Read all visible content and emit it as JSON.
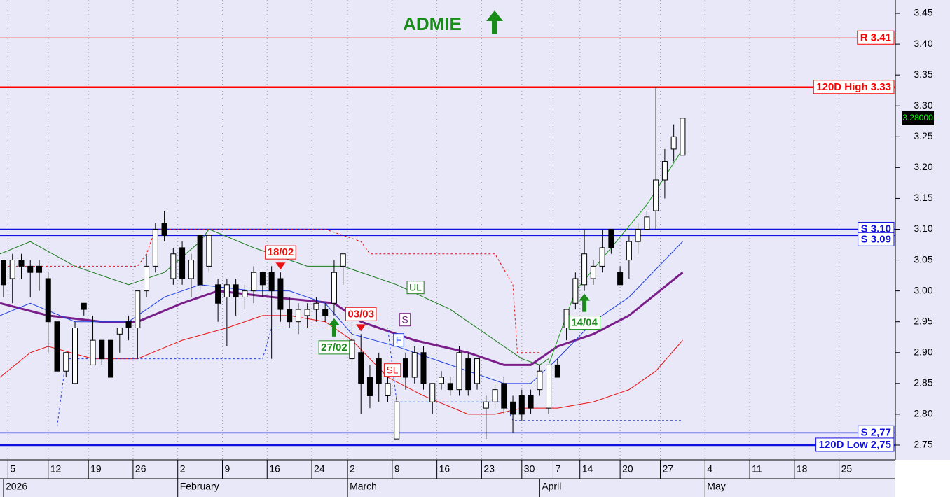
{
  "chart_data": {
    "type": "candlestick",
    "title": "ADMIE",
    "xlim": [
      -0.39,
      99.8
    ],
    "ylim": [
      2.7284,
      3.4716
    ],
    "xticks": [
      {
        "value": 0.5,
        "label": "5"
      },
      {
        "value": 5,
        "label": "12"
      },
      {
        "value": 9.5,
        "label": "19"
      },
      {
        "value": 14.5,
        "label": "26"
      },
      {
        "value": 19.5,
        "label": "2"
      },
      {
        "value": 24.5,
        "label": "9"
      },
      {
        "value": 29.5,
        "label": "16"
      },
      {
        "value": 34.5,
        "label": "24"
      },
      {
        "value": 38.5,
        "label": "2"
      },
      {
        "value": 43.5,
        "label": "9"
      },
      {
        "value": 48.5,
        "label": "16"
      },
      {
        "value": 53.5,
        "label": "23"
      },
      {
        "value": 58,
        "label": "30"
      },
      {
        "value": 61.5,
        "label": "7"
      },
      {
        "value": 64.5,
        "label": "14"
      },
      {
        "value": 69,
        "label": "20"
      },
      {
        "value": 73.5,
        "label": "27"
      },
      {
        "value": 78.5,
        "label": "4"
      },
      {
        "value": 83.5,
        "label": "11"
      },
      {
        "value": 88.5,
        "label": "18"
      },
      {
        "value": 93.5,
        "label": "25"
      }
    ],
    "month_ticks": [
      {
        "value": 0,
        "label": "2026"
      },
      {
        "value": 19.5,
        "label": "February"
      },
      {
        "value": 38.5,
        "label": "March"
      },
      {
        "value": 60,
        "label": "April"
      },
      {
        "value": 78.5,
        "label": "May"
      }
    ],
    "yticks": [
      2.75,
      {
        "value": 2.8,
        "label": "2.80"
      },
      2.85,
      {
        "value": 2.9,
        "label": "2.90"
      },
      2.95,
      {
        "value": 3,
        "label": "3.00"
      },
      3.05,
      {
        "value": 3.1,
        "label": "3.10"
      },
      3.15,
      {
        "value": 3.2,
        "label": "3.20"
      },
      3.25,
      {
        "value": 3.3,
        "label": "3.30"
      },
      3.35,
      {
        "value": 3.4,
        "label": "3.40"
      },
      3.45
    ],
    "open": [
      3.05,
      3.02,
      3.05,
      3.04,
      3.04,
      3.02,
      2.95,
      2.87,
      2.85,
      2.98,
      2.88,
      2.92,
      2.92,
      2.93,
      2.95,
      2.94,
      3.0,
      3.04,
      3.11,
      3.02,
      3.07,
      3.02,
      3.09,
      3.04,
      3.01,
      2.99,
      3.01,
      2.99,
      3.0,
      3.03,
      3.03,
      3.02,
      2.97,
      2.95,
      2.96,
      2.97,
      2.97,
      2.98,
      3.04,
      2.89,
      2.9,
      2.86,
      2.89,
      2.83,
      2.76,
      2.89,
      2.86,
      2.9,
      2.82,
      2.85,
      2.85,
      2.84,
      2.89,
      2.85,
      2.81,
      2.82,
      2.85,
      2.82,
      2.83,
      2.83,
      2.84,
      2.81,
      2.88,
      2.94,
      2.98,
      3.01,
      3.02,
      3.04,
      3.1,
      3.03,
      3.05,
      3.08,
      3.1,
      3.13,
      3.18,
      3.23,
      3.22
    ],
    "high": [
      3.05,
      3.06,
      3.06,
      3.05,
      3.05,
      3.03,
      2.96,
      2.9,
      2.95,
      2.98,
      2.96,
      2.92,
      2.92,
      2.94,
      2.96,
      3.0,
      3.06,
      3.11,
      3.13,
      3.07,
      3.08,
      3.06,
      3.09,
      3.09,
      3.02,
      3.02,
      3.02,
      3.01,
      3.04,
      3.03,
      3.04,
      3.03,
      2.99,
      2.98,
      2.98,
      2.99,
      2.98,
      3.05,
      3.06,
      2.95,
      2.93,
      2.88,
      2.9,
      2.87,
      2.83,
      2.9,
      2.91,
      2.91,
      2.85,
      2.87,
      2.86,
      2.91,
      2.9,
      2.89,
      2.83,
      2.85,
      2.86,
      2.83,
      2.84,
      2.84,
      2.88,
      2.88,
      2.89,
      2.97,
      3.03,
      3.1,
      3.05,
      3.1,
      3.1,
      3.04,
      3.09,
      3.11,
      3.13,
      3.33,
      3.23,
      3.27,
      3.28
    ],
    "low": [
      2.99,
      2.98,
      3.02,
      2.99,
      3.0,
      2.9,
      2.81,
      2.86,
      2.85,
      2.96,
      2.88,
      2.88,
      2.86,
      2.9,
      2.92,
      2.89,
      2.99,
      3.03,
      3.08,
      3.01,
      3.01,
      2.99,
      3.0,
      3.03,
      2.95,
      2.91,
      2.96,
      2.97,
      2.98,
      2.99,
      2.89,
      2.95,
      2.94,
      2.93,
      2.94,
      2.95,
      2.95,
      2.96,
      3.01,
      2.88,
      2.8,
      2.81,
      2.82,
      2.82,
      2.76,
      2.84,
      2.85,
      2.84,
      2.8,
      2.84,
      2.83,
      2.83,
      2.83,
      2.84,
      2.76,
      2.81,
      2.8,
      2.77,
      2.79,
      2.8,
      2.83,
      2.8,
      2.86,
      2.92,
      2.97,
      3.0,
      3.01,
      3.03,
      3.06,
      3.01,
      3.02,
      3.06,
      3.1,
      3.1,
      3.15,
      3.21,
      3.22
    ],
    "close": [
      3.01,
      3.05,
      3.04,
      3.03,
      3.03,
      2.95,
      2.87,
      2.9,
      2.94,
      2.97,
      2.92,
      2.89,
      2.86,
      2.94,
      2.94,
      3.0,
      3.04,
      3.1,
      3.09,
      3.06,
      3.02,
      3.05,
      3.01,
      3.09,
      2.98,
      3.01,
      2.99,
      3.0,
      3.03,
      3.01,
      3.0,
      2.97,
      2.95,
      2.97,
      2.97,
      2.98,
      2.96,
      3.03,
      3.06,
      2.92,
      2.85,
      2.83,
      2.85,
      2.85,
      2.82,
      2.86,
      2.9,
      2.85,
      2.85,
      2.86,
      2.84,
      2.9,
      2.84,
      2.89,
      2.82,
      2.84,
      2.81,
      2.8,
      2.8,
      2.81,
      2.87,
      2.88,
      2.86,
      2.97,
      3.02,
      3.06,
      3.04,
      3.07,
      3.07,
      3.01,
      3.08,
      3.1,
      3.12,
      3.18,
      3.21,
      3.25,
      3.28
    ],
    "series": [
      {
        "name": "UL",
        "color": "#1a7a1a",
        "width": 1,
        "x": [
          -0.39,
          3,
          8,
          14,
          18,
          22,
          23,
          28,
          34,
          38,
          44,
          50,
          55,
          58,
          60,
          61
        ],
        "values": [
          3.06,
          3.08,
          3.04,
          3.01,
          3.03,
          3.08,
          3.1,
          3.07,
          3.04,
          3.04,
          3.01,
          2.97,
          2.92,
          2.89,
          2.88,
          2.89
        ]
      },
      {
        "name": "S",
        "color": "#7a1f8a",
        "width": 3,
        "x": [
          -0.39,
          5,
          11,
          15,
          20,
          24,
          30,
          37,
          40,
          46,
          52,
          56,
          59,
          62,
          66,
          70,
          76
        ],
        "values": [
          2.98,
          2.96,
          2.95,
          2.95,
          2.98,
          3.0,
          2.99,
          2.98,
          2.95,
          2.92,
          2.9,
          2.88,
          2.88,
          2.91,
          2.93,
          2.96,
          3.03
        ]
      },
      {
        "name": "F",
        "color": "#1f3fe0",
        "width": 1,
        "x": [
          -0.39,
          3,
          8,
          14,
          18,
          22,
          28,
          32,
          36,
          39,
          44,
          50,
          56,
          59,
          62,
          66,
          70,
          76
        ],
        "values": [
          2.96,
          2.98,
          2.95,
          2.95,
          2.99,
          3.01,
          3.0,
          3.0,
          2.98,
          2.93,
          2.91,
          2.88,
          2.85,
          2.85,
          2.89,
          2.95,
          2.99,
          3.08
        ]
      },
      {
        "name": "SL",
        "color": "#e81010",
        "width": 1,
        "x": [
          -0.39,
          3,
          5,
          10,
          15,
          20,
          25,
          29,
          32,
          36,
          39,
          43,
          47,
          52,
          55,
          58,
          62,
          66,
          70,
          73,
          76
        ],
        "values": [
          2.86,
          2.9,
          2.91,
          2.89,
          2.89,
          2.92,
          2.94,
          2.96,
          2.96,
          2.95,
          2.92,
          2.86,
          2.83,
          2.8,
          2.8,
          2.81,
          2.81,
          2.82,
          2.84,
          2.87,
          2.92
        ]
      },
      {
        "color": "#1a9a1a",
        "width": 1,
        "x": [
          61,
          64,
          68,
          72,
          76
        ],
        "values": [
          2.88,
          3.0,
          3.07,
          3.14,
          3.23
        ]
      },
      {
        "color": "#e81010",
        "width": 1,
        "dash": true,
        "x": [
          0,
          15,
          16,
          17,
          36,
          40,
          41,
          55,
          57,
          57.5,
          60
        ],
        "values": [
          3.04,
          3.04,
          3.06,
          3.1,
          3.1,
          3.08,
          3.06,
          3.06,
          3.01,
          2.9,
          2.9
        ]
      },
      {
        "color": "#1f3fe0",
        "width": 1,
        "dash": true,
        "x": [
          6,
          7,
          29,
          30,
          43,
          44,
          56,
          57,
          76
        ],
        "values": [
          2.78,
          2.89,
          2.89,
          2.94,
          2.94,
          2.82,
          2.82,
          2.79,
          2.79
        ]
      }
    ],
    "levels": [
      {
        "value": 3.41,
        "label": "R 3.41",
        "color": "#ff0000",
        "width": 1
      },
      {
        "value": 3.33,
        "label": "120D High 3.33",
        "color": "#ff0000",
        "width": 2.5
      },
      {
        "value": 3.1,
        "label": "S 3.10",
        "color": "#1010e0",
        "width": 1.5
      },
      {
        "value": 3.09,
        "label": "S 3.09",
        "color": "#1010e0",
        "width": 1.5
      },
      {
        "value": 2.77,
        "label": "S 2,77",
        "color": "#1010e0",
        "width": 1.5
      },
      {
        "value": 2.75,
        "label": "120D Low 2,75",
        "color": "#1010e0",
        "width": 2.5
      }
    ],
    "signals": [
      {
        "label": "18/02",
        "x": 31,
        "direction": "sell"
      },
      {
        "label": "03/03",
        "x": 40,
        "direction": "sell"
      },
      {
        "label": "27/02",
        "x": 37,
        "direction": "buy"
      },
      {
        "label": "14/04",
        "x": 65,
        "direction": "buy"
      }
    ],
    "last": {
      "value": 3.28,
      "label": "3.28000"
    }
  }
}
